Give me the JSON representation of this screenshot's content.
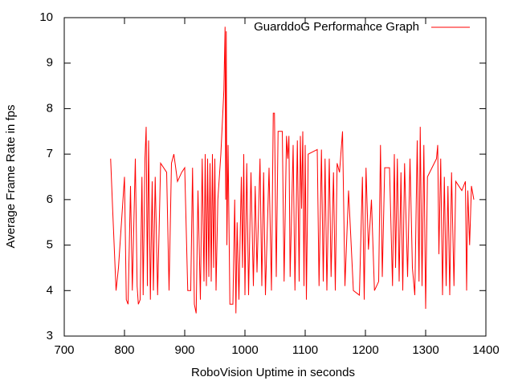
{
  "chart_data": {
    "type": "line",
    "x_label": "RoboVision Uptime in seconds",
    "y_label": "Average Frame Rate in fps",
    "xlim": [
      700,
      1400
    ],
    "xticks": [
      700,
      800,
      900,
      1000,
      1100,
      1200,
      1300,
      1400
    ],
    "ylim": [
      3,
      10
    ],
    "yticks": [
      3,
      4,
      5,
      6,
      7,
      8,
      9,
      10
    ],
    "legend": "top-right",
    "series": [
      {
        "name": "GuarddoG Performance Graph",
        "color": "#ff0000",
        "x": [
          777,
          780,
          786,
          790,
          800,
          803,
          806,
          810,
          813,
          818,
          821,
          823,
          826,
          829,
          831,
          834,
          836,
          838,
          840,
          843,
          846,
          848,
          851,
          855,
          860,
          870,
          874,
          878,
          882,
          888,
          895,
          900,
          905,
          910,
          913,
          916,
          919,
          922,
          926,
          929,
          932,
          934,
          936,
          938,
          940,
          942,
          944,
          946,
          948,
          950,
          952,
          955,
          960,
          965,
          967,
          968,
          969,
          970,
          972,
          975,
          980,
          983,
          985,
          987,
          990,
          994,
          996,
          998,
          1000,
          1003,
          1006,
          1010,
          1014,
          1017,
          1020,
          1025,
          1028,
          1031,
          1034,
          1040,
          1044,
          1047,
          1049,
          1052,
          1055,
          1062,
          1065,
          1069,
          1071,
          1073,
          1075,
          1080,
          1083,
          1087,
          1090,
          1092,
          1094,
          1096,
          1098,
          1100,
          1102,
          1105,
          1120,
          1123,
          1127,
          1130,
          1133,
          1136,
          1140,
          1143,
          1147,
          1150,
          1153,
          1157,
          1162,
          1166,
          1172,
          1180,
          1190,
          1195,
          1198,
          1201,
          1205,
          1210,
          1215,
          1222,
          1225,
          1228,
          1232,
          1240,
          1245,
          1248,
          1250,
          1253,
          1256,
          1259,
          1262,
          1265,
          1270,
          1274,
          1278,
          1282,
          1286,
          1289,
          1291,
          1294,
          1297,
          1300,
          1303,
          1318,
          1320,
          1322,
          1325,
          1328,
          1331,
          1334,
          1337,
          1340,
          1343,
          1347,
          1350,
          1360,
          1366,
          1368,
          1370,
          1373,
          1376,
          1380
        ],
        "values": [
          6.9,
          5.9,
          4.0,
          4.5,
          6.5,
          3.8,
          3.7,
          6.3,
          4.0,
          6.9,
          4.1,
          3.7,
          3.8,
          6.5,
          3.9,
          6.9,
          7.6,
          4.1,
          7.3,
          3.8,
          6.4,
          4.0,
          6.5,
          3.9,
          6.8,
          6.6,
          4.0,
          6.8,
          7.0,
          6.4,
          6.6,
          6.7,
          4.0,
          4.0,
          6.7,
          3.7,
          3.5,
          6.2,
          3.8,
          6.9,
          4.2,
          7.0,
          4.1,
          6.9,
          4.3,
          6.8,
          4.2,
          7.0,
          4.5,
          6.9,
          4.0,
          6.0,
          7.0,
          8.4,
          9.8,
          6.0,
          9.7,
          5.0,
          7.2,
          3.7,
          3.7,
          6.0,
          3.5,
          5.5,
          3.8,
          6.5,
          4.5,
          7.0,
          3.9,
          6.8,
          3.9,
          6.6,
          4.1,
          6.3,
          4.4,
          6.9,
          4.1,
          6.6,
          3.9,
          6.7,
          4.0,
          7.9,
          7.9,
          4.3,
          7.5,
          7.5,
          4.2,
          7.4,
          6.9,
          7.4,
          4.3,
          7.2,
          4.0,
          7.3,
          4.2,
          7.4,
          5.8,
          7.5,
          4.1,
          7.2,
          3.8,
          7.0,
          7.1,
          4.1,
          7.1,
          4.2,
          6.9,
          4.0,
          6.9,
          4.3,
          6.6,
          4.0,
          6.8,
          6.6,
          7.5,
          4.1,
          6.2,
          4.0,
          3.9,
          6.5,
          3.8,
          6.7,
          4.9,
          6.0,
          4.0,
          4.2,
          7.2,
          4.3,
          6.7,
          6.7,
          4.1,
          7.0,
          4.5,
          6.9,
          4.2,
          6.6,
          4.0,
          6.8,
          4.3,
          6.9,
          4.5,
          3.9,
          7.3,
          4.2,
          7.6,
          4.1,
          7.2,
          3.6,
          6.5,
          6.9,
          7.2,
          4.8,
          6.9,
          3.9,
          6.5,
          4.1,
          6.3,
          3.9,
          6.6,
          4.1,
          6.4,
          6.2,
          6.4,
          4.0,
          6.2,
          5.0,
          6.3,
          6.0
        ]
      }
    ]
  }
}
